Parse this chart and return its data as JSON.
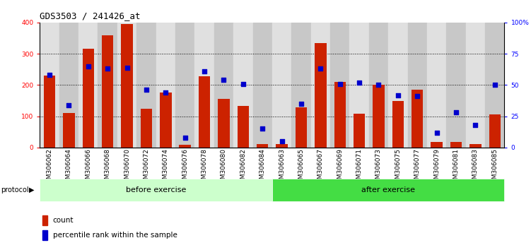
{
  "title": "GDS3503 / 241426_at",
  "categories": [
    "GSM306062",
    "GSM306064",
    "GSM306066",
    "GSM306068",
    "GSM306070",
    "GSM306072",
    "GSM306074",
    "GSM306076",
    "GSM306078",
    "GSM306080",
    "GSM306082",
    "GSM306084",
    "GSM306063",
    "GSM306065",
    "GSM306067",
    "GSM306069",
    "GSM306071",
    "GSM306073",
    "GSM306075",
    "GSM306077",
    "GSM306079",
    "GSM306081",
    "GSM306083",
    "GSM306085"
  ],
  "bar_values": [
    230,
    110,
    315,
    360,
    395,
    125,
    175,
    8,
    228,
    155,
    132,
    10,
    10,
    128,
    335,
    210,
    108,
    200,
    148,
    185,
    18,
    18,
    10,
    105
  ],
  "percentile_values": [
    58,
    34,
    65,
    63,
    64,
    46,
    44,
    8,
    61,
    54,
    51,
    15,
    5,
    35,
    63,
    51,
    52,
    50,
    42,
    41,
    12,
    28,
    18,
    50
  ],
  "before_count": 12,
  "after_count": 12,
  "bar_color": "#CC2200",
  "dot_color": "#0000CC",
  "before_color": "#CCFFCC",
  "after_color": "#44DD44",
  "col_bg_even": "#E0E0E0",
  "col_bg_odd": "#C8C8C8",
  "ylim_left": [
    0,
    400
  ],
  "ylim_right": [
    0,
    100
  ],
  "right_ticks": [
    0,
    25,
    50,
    75,
    100
  ],
  "right_tick_labels": [
    "0",
    "25",
    "50",
    "75",
    "100%"
  ],
  "left_ticks": [
    0,
    100,
    200,
    300,
    400
  ],
  "grid_values": [
    100,
    200,
    300
  ],
  "protocol_label": "protocol",
  "before_label": "before exercise",
  "after_label": "after exercise",
  "legend_count_label": "count",
  "legend_percentile_label": "percentile rank within the sample",
  "title_fontsize": 9,
  "tick_fontsize": 6.5,
  "legend_fontsize": 7.5
}
